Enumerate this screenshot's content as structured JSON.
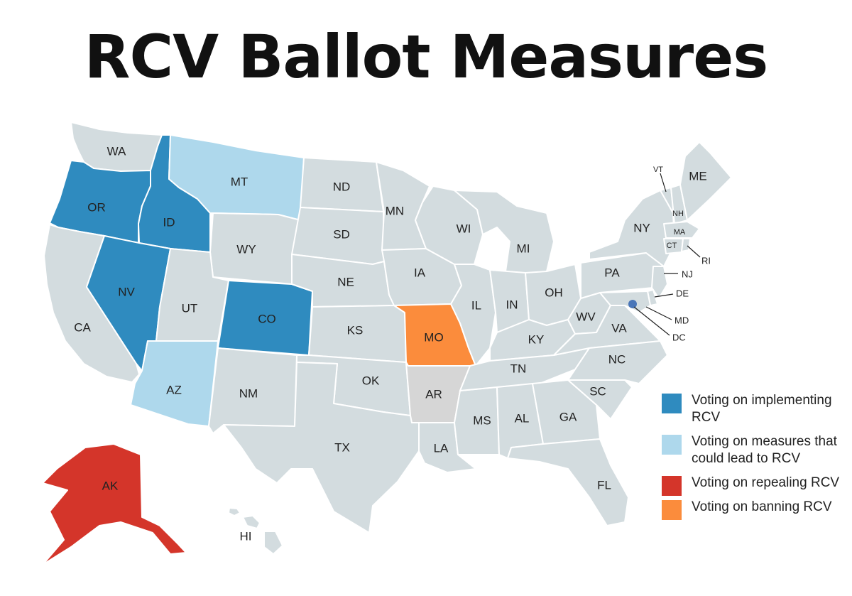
{
  "title": "RCV Ballot Measures",
  "colors": {
    "implementing": "#2f8bbf",
    "measures": "#aed8ec",
    "repealing": "#d4352a",
    "banning": "#fb8c3c",
    "default": "#d3dcdf",
    "arkansas": "#d6d6d6"
  },
  "legend": [
    {
      "key": "implementing",
      "label": "Voting on implementing RCV"
    },
    {
      "key": "measures",
      "label": "Voting on measures that could lead to RCV"
    },
    {
      "key": "repealing",
      "label": "Voting on repealing RCV"
    },
    {
      "key": "banning",
      "label": "Voting on banning RCV"
    }
  ],
  "states": {
    "WA": {
      "label": "WA",
      "status": "default"
    },
    "OR": {
      "label": "OR",
      "status": "implementing"
    },
    "CA": {
      "label": "CA",
      "status": "default"
    },
    "ID": {
      "label": "ID",
      "status": "implementing"
    },
    "NV": {
      "label": "NV",
      "status": "implementing"
    },
    "MT": {
      "label": "MT",
      "status": "measures"
    },
    "WY": {
      "label": "WY",
      "status": "default"
    },
    "UT": {
      "label": "UT",
      "status": "default"
    },
    "AZ": {
      "label": "AZ",
      "status": "measures"
    },
    "CO": {
      "label": "CO",
      "status": "implementing"
    },
    "NM": {
      "label": "NM",
      "status": "default"
    },
    "ND": {
      "label": "ND",
      "status": "default"
    },
    "SD": {
      "label": "SD",
      "status": "default"
    },
    "NE": {
      "label": "NE",
      "status": "default"
    },
    "KS": {
      "label": "KS",
      "status": "default"
    },
    "OK": {
      "label": "OK",
      "status": "default"
    },
    "TX": {
      "label": "TX",
      "status": "default"
    },
    "MN": {
      "label": "MN",
      "status": "default"
    },
    "IA": {
      "label": "IA",
      "status": "default"
    },
    "MO": {
      "label": "MO",
      "status": "banning"
    },
    "AR": {
      "label": "AR",
      "status": "arkansas"
    },
    "LA": {
      "label": "LA",
      "status": "default"
    },
    "WI": {
      "label": "WI",
      "status": "default"
    },
    "IL": {
      "label": "IL",
      "status": "default"
    },
    "MS": {
      "label": "MS",
      "status": "default"
    },
    "MI": {
      "label": "MI",
      "status": "default"
    },
    "IN": {
      "label": "IN",
      "status": "default"
    },
    "KY": {
      "label": "KY",
      "status": "default"
    },
    "TN": {
      "label": "TN",
      "status": "default"
    },
    "AL": {
      "label": "AL",
      "status": "default"
    },
    "OH": {
      "label": "OH",
      "status": "default"
    },
    "WV": {
      "label": "WV",
      "status": "default"
    },
    "VA": {
      "label": "VA",
      "status": "default"
    },
    "NC": {
      "label": "NC",
      "status": "default"
    },
    "SC": {
      "label": "SC",
      "status": "default"
    },
    "GA": {
      "label": "GA",
      "status": "default"
    },
    "FL": {
      "label": "FL",
      "status": "default"
    },
    "PA": {
      "label": "PA",
      "status": "default"
    },
    "NY": {
      "label": "NY",
      "status": "default"
    },
    "NJ": {
      "label": "NJ",
      "status": "default"
    },
    "DE": {
      "label": "DE",
      "status": "default"
    },
    "MD": {
      "label": "MD",
      "status": "default"
    },
    "DC": {
      "label": "DC",
      "status": "default"
    },
    "VT": {
      "label": "VT",
      "status": "default"
    },
    "NH": {
      "label": "NH",
      "status": "default"
    },
    "ME": {
      "label": "ME",
      "status": "default"
    },
    "MA": {
      "label": "MA",
      "status": "default"
    },
    "CT": {
      "label": "CT",
      "status": "default"
    },
    "RI": {
      "label": "RI",
      "status": "default"
    },
    "AK": {
      "label": "AK",
      "status": "repealing"
    },
    "HI": {
      "label": "HI",
      "status": "default"
    }
  }
}
